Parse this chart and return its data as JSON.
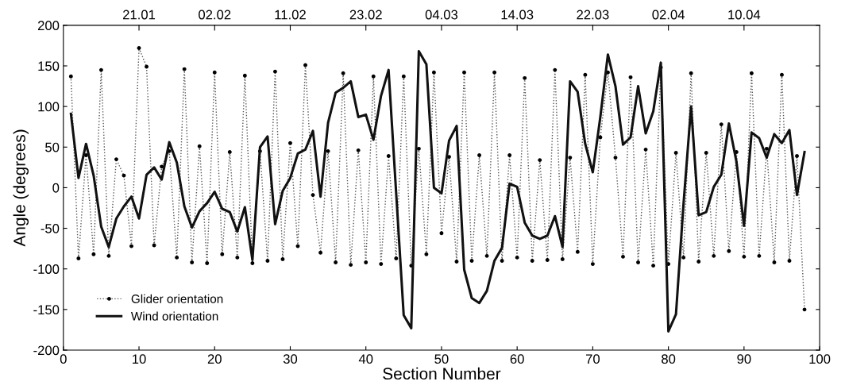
{
  "chart_data": {
    "type": "line",
    "xlabel": "Section Number",
    "ylabel": "Angle (degrees)",
    "xlim": [
      0,
      100
    ],
    "xticks": [
      0,
      10,
      20,
      30,
      40,
      50,
      60,
      70,
      80,
      90,
      100
    ],
    "ylim": [
      -200,
      200
    ],
    "yticks": [
      -200,
      -150,
      -100,
      -50,
      0,
      50,
      100,
      150,
      200
    ],
    "annotations": [
      {
        "text": "21.01",
        "x": 10
      },
      {
        "text": "02.02",
        "x": 20
      },
      {
        "text": "11.02",
        "x": 30
      },
      {
        "text": "23.02",
        "x": 40
      },
      {
        "text": "04.03",
        "x": 50
      },
      {
        "text": "14.03",
        "x": 60
      },
      {
        "text": "22.03",
        "x": 70
      },
      {
        "text": "02.04",
        "x": 80
      },
      {
        "text": "10.04",
        "x": 90
      }
    ],
    "grid": false,
    "legend": "bottom left",
    "x": [
      1,
      2,
      3,
      4,
      5,
      6,
      7,
      8,
      9,
      10,
      11,
      12,
      13,
      14,
      15,
      16,
      17,
      18,
      19,
      20,
      21,
      22,
      23,
      24,
      25,
      26,
      27,
      28,
      29,
      30,
      31,
      32,
      33,
      34,
      35,
      36,
      37,
      38,
      39,
      40,
      41,
      42,
      43,
      44,
      45,
      46,
      47,
      48,
      49,
      50,
      51,
      52,
      53,
      54,
      55,
      56,
      57,
      58,
      59,
      60,
      61,
      62,
      63,
      64,
      65,
      66,
      67,
      68,
      69,
      70,
      71,
      72,
      73,
      74,
      75,
      76,
      77,
      78,
      79,
      80,
      81,
      82,
      83,
      84,
      85,
      86,
      87,
      88,
      89,
      90,
      91,
      92,
      93,
      94,
      95,
      96,
      97,
      98
    ],
    "series": [
      {
        "name": "Glider orientation",
        "color": "#555555",
        "line_style": "dotted",
        "marker": "circle",
        "values": [
          137,
          -87,
          40,
          -82,
          145,
          -84,
          35,
          15,
          -72,
          172,
          149,
          -71,
          26,
          45,
          -86,
          146,
          -92,
          51,
          -93,
          142,
          -82,
          44,
          -86,
          138,
          -93,
          45,
          -90,
          143,
          -88,
          55,
          -72,
          151,
          -9,
          -80,
          45,
          -92,
          141,
          -95,
          46,
          -92,
          137,
          -94,
          39,
          -87,
          137,
          -96,
          48,
          -82,
          142,
          -56,
          38,
          -91,
          142,
          -90,
          40,
          -84,
          142,
          -90,
          40,
          -86,
          135,
          -90,
          34,
          -89,
          145,
          -88,
          37,
          -79,
          139,
          -94,
          62,
          142,
          37,
          -85,
          136,
          -92,
          47,
          -96,
          148,
          -94,
          43,
          -86,
          141,
          -91,
          43,
          -84,
          78,
          -78,
          44,
          -85,
          141,
          -84,
          48,
          -92,
          139,
          -90,
          39,
          -150
        ]
      },
      {
        "name": "Wind orientation",
        "color": "#111111",
        "line_style": "solid",
        "marker": "none",
        "values": [
          91,
          12,
          54,
          15,
          -48,
          -73,
          -38,
          -23,
          -11,
          -38,
          16,
          25,
          10,
          56,
          31,
          -23,
          -49,
          -29,
          -19,
          -5,
          -26,
          -30,
          -54,
          -24,
          -89,
          50,
          63,
          -45,
          -4,
          12,
          42,
          47,
          70,
          -11,
          80,
          117,
          123,
          131,
          87,
          90,
          59,
          113,
          145,
          -6,
          -157,
          -173,
          168,
          152,
          0,
          -7,
          58,
          76,
          -101,
          -136,
          -142,
          -127,
          -90,
          -74,
          5,
          1,
          -43,
          -59,
          -63,
          -59,
          -35,
          -73,
          131,
          118,
          54,
          19,
          87,
          164,
          125,
          53,
          62,
          125,
          67,
          94,
          154,
          -177,
          -156,
          -20,
          100,
          -34,
          -30,
          1,
          16,
          79,
          32,
          -47,
          68,
          61,
          37,
          66,
          55,
          71,
          -9,
          44
        ]
      }
    ]
  }
}
